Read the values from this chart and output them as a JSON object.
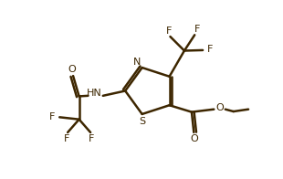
{
  "background_color": "#ffffff",
  "line_color": "#3d2600",
  "line_width": 1.8,
  "figsize": [
    3.1,
    1.96
  ],
  "dpi": 100,
  "xlim": [
    0,
    10
  ],
  "ylim": [
    0,
    6.5
  ]
}
